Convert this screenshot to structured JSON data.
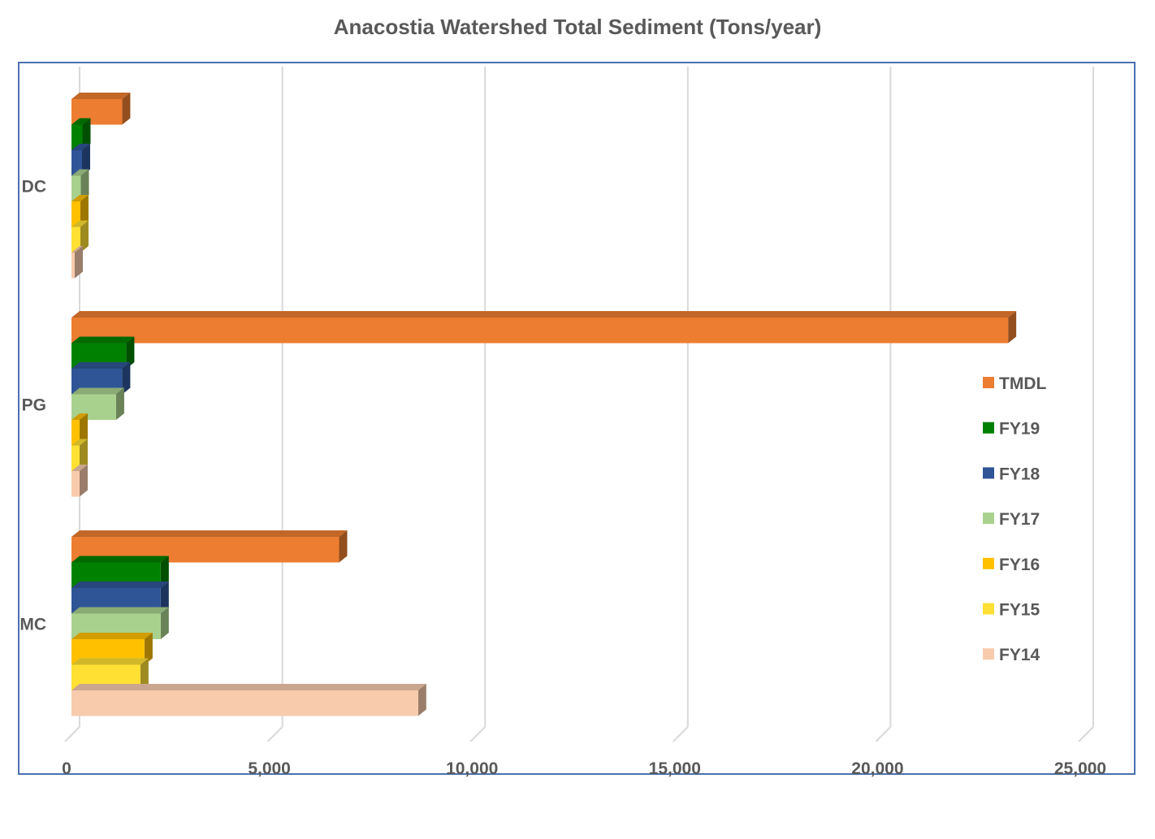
{
  "chart_data": {
    "type": "bar",
    "orientation": "horizontal",
    "title": "Anacostia Watershed Total Sediment (Tons/year)",
    "xlabel": "",
    "ylabel": "",
    "xlim": [
      0,
      25000
    ],
    "x_ticks": [
      0,
      5000,
      10000,
      15000,
      20000,
      25000
    ],
    "x_tick_labels": [
      "0",
      "5,000",
      "10,000",
      "15,000",
      "20,000",
      "25,000"
    ],
    "grid": "vertical",
    "legend_position": "right",
    "categories": [
      "DC",
      "PG",
      "MC"
    ],
    "series": [
      {
        "name": "TMDL",
        "color": "#ed7d31",
        "values": [
          1250,
          23100,
          6600
        ]
      },
      {
        "name": "FY19",
        "color": "#008000",
        "values": [
          270,
          1350,
          2200
        ]
      },
      {
        "name": "FY18",
        "color": "#2f5597",
        "values": [
          260,
          1250,
          2200
        ]
      },
      {
        "name": "FY17",
        "color": "#a9d18e",
        "values": [
          230,
          1100,
          2200
        ]
      },
      {
        "name": "FY16",
        "color": "#ffc000",
        "values": [
          220,
          200,
          1800
        ]
      },
      {
        "name": "FY15",
        "color": "#ffe033",
        "values": [
          220,
          200,
          1700
        ]
      },
      {
        "name": "FY14",
        "color": "#f8cbad",
        "values": [
          80,
          200,
          8550
        ]
      }
    ]
  }
}
